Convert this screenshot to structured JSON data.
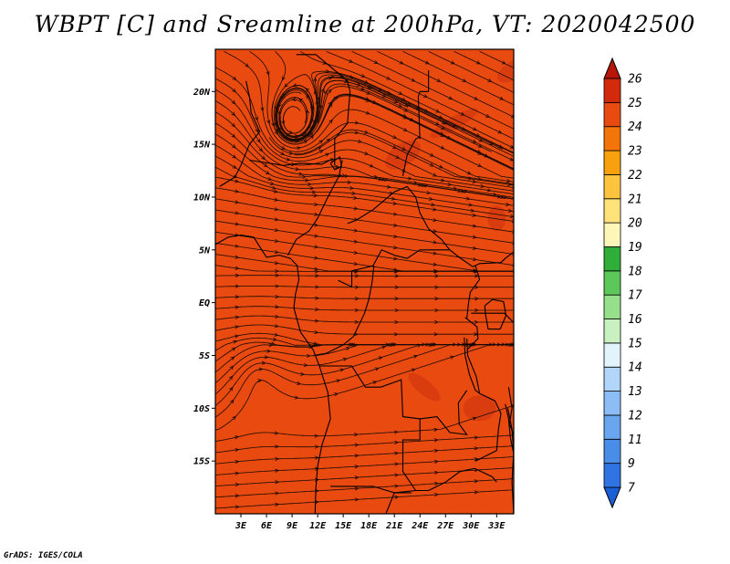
{
  "title": "WBPT [C] and Sreamline at 200hPa, VT: 2020042500",
  "footer": "GrADS: IGES/COLA",
  "map": {
    "variable": "WBPT",
    "units": "C",
    "level": "200hPa",
    "valid_time": "2020042500",
    "lon_range": [
      0,
      35
    ],
    "lat_range": [
      -20,
      24
    ],
    "background_color": "#e84a10",
    "lat_ticks": [
      {
        "label": "20N",
        "value": 20
      },
      {
        "label": "15N",
        "value": 15
      },
      {
        "label": "10N",
        "value": 10
      },
      {
        "label": "5N",
        "value": 5
      },
      {
        "label": "EQ",
        "value": 0
      },
      {
        "label": "5S",
        "value": -5
      },
      {
        "label": "10S",
        "value": -10
      },
      {
        "label": "15S",
        "value": -15
      }
    ],
    "lon_ticks": [
      {
        "label": "3E",
        "value": 3
      },
      {
        "label": "6E",
        "value": 6
      },
      {
        "label": "9E",
        "value": 9
      },
      {
        "label": "12E",
        "value": 12
      },
      {
        "label": "15E",
        "value": 15
      },
      {
        "label": "18E",
        "value": 18
      },
      {
        "label": "21E",
        "value": 21
      },
      {
        "label": "24E",
        "value": 24
      },
      {
        "label": "27E",
        "value": 27
      },
      {
        "label": "30E",
        "value": 30
      },
      {
        "label": "33E",
        "value": 33
      }
    ],
    "vortex_center": {
      "lon": 9,
      "lat": 17
    }
  },
  "colorbar": {
    "levels": [
      "7",
      "9",
      "11",
      "12",
      "13",
      "14",
      "15",
      "16",
      "17",
      "18",
      "19",
      "20",
      "21",
      "22",
      "23",
      "24",
      "25",
      "26"
    ],
    "colors": [
      "#1a5fd6",
      "#2f74e2",
      "#4a8de9",
      "#6aa6f0",
      "#8cbef5",
      "#b2d6fa",
      "#e2f3fc",
      "#c8f0c0",
      "#96e08c",
      "#5cc85a",
      "#2fae3a",
      "#fdf6b8",
      "#fde27a",
      "#fcc43e",
      "#f9a00e",
      "#f37408",
      "#e84a10",
      "#d42a0c",
      "#b81408"
    ]
  }
}
